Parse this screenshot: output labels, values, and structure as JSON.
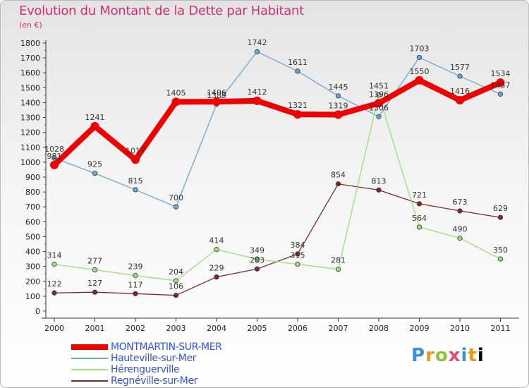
{
  "chart_data": {
    "type": "line",
    "title": "Evolution du Montant de la Dette par Habitant",
    "subtitle": "(en €)",
    "x": [
      "2000",
      "2001",
      "2002",
      "2003",
      "2004",
      "2005",
      "2006",
      "2007",
      "2008",
      "2009",
      "2010",
      "2011"
    ],
    "ylim": [
      0,
      1800
    ],
    "yticks": [
      0,
      100,
      200,
      300,
      400,
      500,
      600,
      700,
      800,
      900,
      1000,
      1100,
      1200,
      1300,
      1400,
      1500,
      1600,
      1700,
      1800
    ],
    "grid": false,
    "legend_position": "bottom-left",
    "series": [
      {
        "name": "MONTMARTIN-SUR-MER",
        "color": "#ee0000",
        "values": [
          981,
          1241,
          1017,
          1405,
          1406,
          1412,
          1321,
          1319,
          1396,
          1550,
          1416,
          1534
        ]
      },
      {
        "name": "Hauteville-sur-Mer",
        "color": "#6aa6d6",
        "values": [
          1028,
          925,
          815,
          700,
          1389,
          1742,
          1611,
          1445,
          1306,
          1703,
          1577,
          1457
        ]
      },
      {
        "name": "Hérenguerville",
        "color": "#99e07a",
        "values": [
          314,
          277,
          239,
          204,
          414,
          349,
          315,
          281,
          1451,
          564,
          490,
          350
        ]
      },
      {
        "name": "Regnéville-sur-Mer",
        "color": "#7a2a2a",
        "values": [
          122,
          127,
          117,
          106,
          229,
          283,
          384,
          854,
          813,
          721,
          673,
          629
        ]
      }
    ]
  },
  "logo": {
    "letters": [
      "P",
      "r",
      "o",
      "x",
      "i",
      "t",
      "i"
    ]
  }
}
